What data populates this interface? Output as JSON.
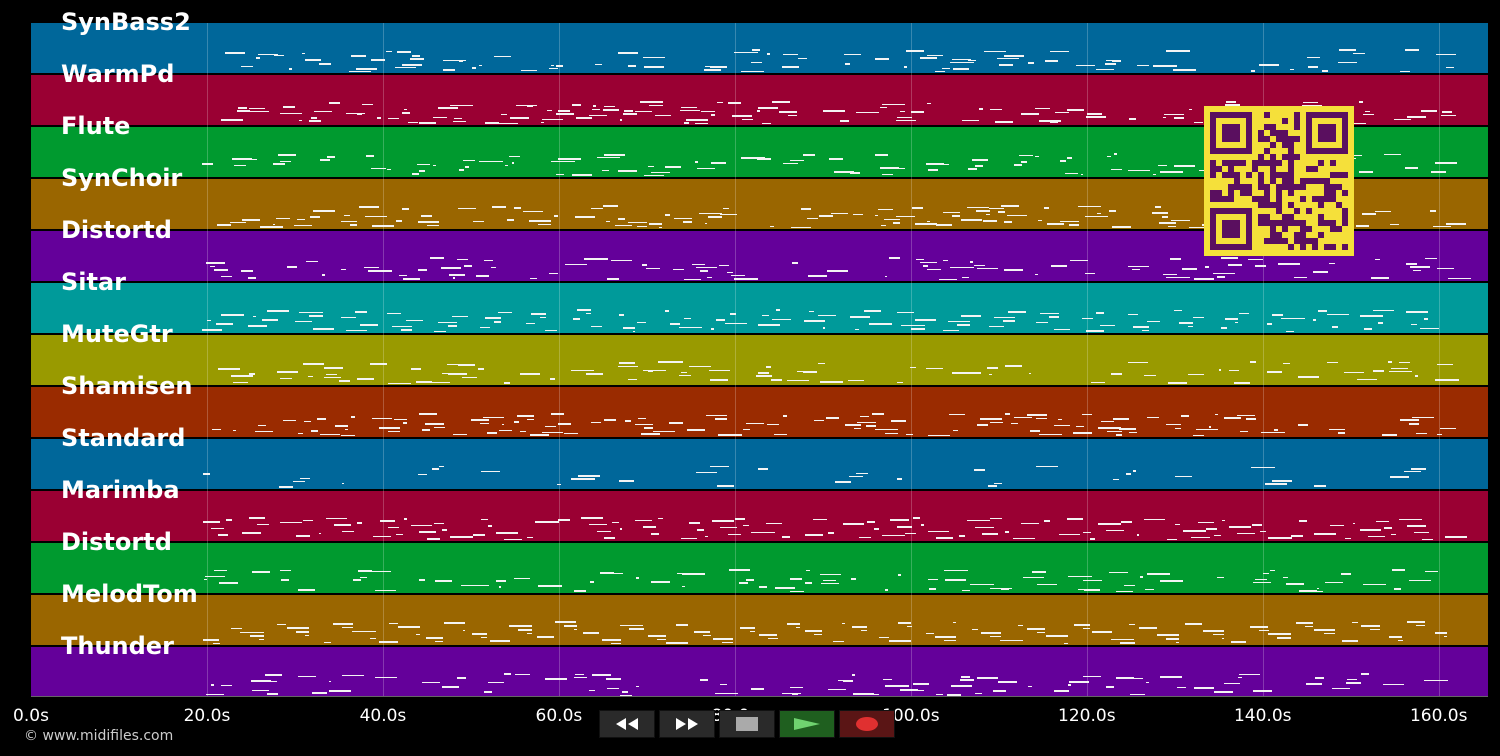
{
  "tracks": [
    {
      "name": "SynBass2",
      "color": "#00679a"
    },
    {
      "name": "WarmPd",
      "color": "#9a0033"
    },
    {
      "name": "Flute",
      "color": "#009a2f"
    },
    {
      "name": "SynChoir",
      "color": "#9a6600"
    },
    {
      "name": "Distortd",
      "color": "#64009a"
    },
    {
      "name": "Sitar",
      "color": "#009a9a"
    },
    {
      "name": "MuteGtr",
      "color": "#999a00"
    },
    {
      "name": "Shamisen",
      "color": "#9a2b00"
    },
    {
      "name": "Standard",
      "color": "#00679a"
    },
    {
      "name": "Marimba",
      "color": "#9a0033"
    },
    {
      "name": "Distortd",
      "color": "#009a2f"
    },
    {
      "name": "MelodTom",
      "color": "#9a6600"
    },
    {
      "name": "Thunder",
      "color": "#64009a"
    }
  ],
  "axis": {
    "ticks": [
      "0.0s",
      "20.0s",
      "40.0s",
      "60.0s",
      "80.0s",
      "100.0s",
      "120.0s",
      "140.0s",
      "160.0s"
    ],
    "tick_values": [
      0,
      20,
      40,
      60,
      80,
      100,
      120,
      140,
      160
    ],
    "max_seconds": 165.6
  },
  "copyright": "© www.midifiles.com",
  "controls": [
    {
      "name": "rewind-button",
      "icon": "rewind-icon"
    },
    {
      "name": "fast-forward-button",
      "icon": "fast-forward-icon"
    },
    {
      "name": "stop-button",
      "icon": "stop-icon"
    },
    {
      "name": "play-button",
      "icon": "play-icon"
    },
    {
      "name": "record-button",
      "icon": "record-icon"
    }
  ],
  "qr_code": {
    "fg": "#5a0f5f",
    "bg": "#f5e03a"
  }
}
